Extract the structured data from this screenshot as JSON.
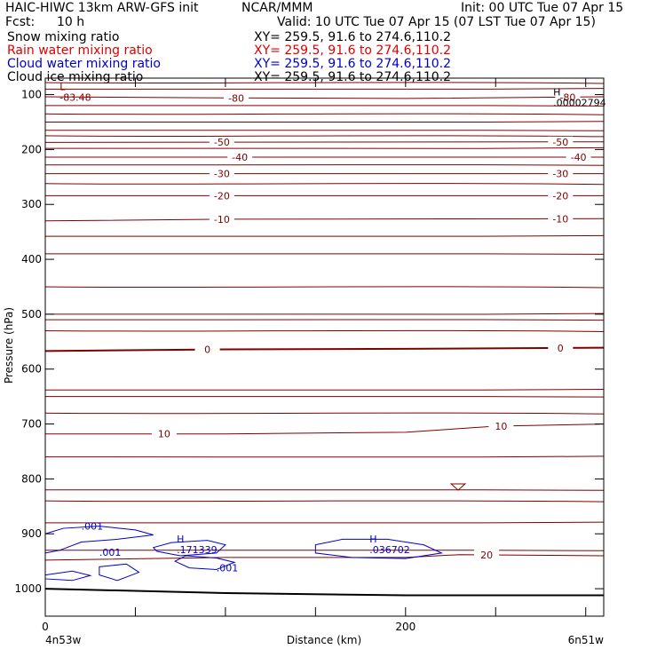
{
  "header": {
    "model": "HAIC-HIWC 13km ARW-GFS init",
    "org": "NCAR/MMM",
    "init": "Init: 00 UTC Tue 07 Apr 15",
    "fcst_label": "Fcst:",
    "fcst_value": "10 h",
    "valid": "Valid: 10 UTC Tue 07 Apr 15 (07 LST Tue 07 Apr 15)"
  },
  "legend": [
    {
      "label": "Snow mixing ratio",
      "xy": "XY= 259.5, 91.6 to 274.6,110.2",
      "color": "#000000"
    },
    {
      "label": "Rain water mixing ratio",
      "xy": "XY= 259.5, 91.6 to 274.6,110.2",
      "color": "#e00000"
    },
    {
      "label": "Cloud water mixing ratio",
      "xy": "XY= 259.5, 91.6 to 274.6,110.2",
      "color": "#0000cc"
    },
    {
      "label": "Cloud ice mixing ratio",
      "xy": "XY= 259.5, 91.6 to 274.6,110.2",
      "color": "#000000"
    }
  ],
  "chart_data": {
    "type": "line",
    "xlabel": "Distance (km)",
    "ylabel": "Pressure (hPa)",
    "xlim": [
      0,
      310
    ],
    "ylim": [
      1050,
      70
    ],
    "xticks": [
      0,
      200
    ],
    "yticks": [
      100,
      200,
      300,
      400,
      500,
      600,
      700,
      800,
      900,
      1000
    ],
    "endpoint_labels": {
      "left": "4n53w",
      "right": "6n51w"
    },
    "colors": {
      "temperature": "#800000",
      "cloud_water": "#0000cc",
      "terrain": "#000000"
    },
    "temperature_contours": [
      {
        "value": -80,
        "label": "-80",
        "points": [
          [
            0,
            104
          ],
          [
            100,
            106
          ],
          [
            200,
            107
          ],
          [
            310,
            104
          ]
        ],
        "labels_at": [
          106,
          290
        ]
      },
      {
        "value": -50,
        "label": "-50",
        "points": [
          [
            0,
            187
          ],
          [
            310,
            186
          ]
        ],
        "labels_at": [
          98,
          286
        ]
      },
      {
        "value": -40,
        "label": "-40",
        "points": [
          [
            0,
            214
          ],
          [
            310,
            214
          ]
        ],
        "labels_at": [
          108,
          296
        ]
      },
      {
        "value": -30,
        "label": "-30",
        "points": [
          [
            0,
            244
          ],
          [
            310,
            244
          ]
        ],
        "labels_at": [
          98,
          286
        ]
      },
      {
        "value": -20,
        "label": "-20",
        "points": [
          [
            0,
            284
          ],
          [
            310,
            284
          ]
        ],
        "labels_at": [
          98,
          286
        ]
      },
      {
        "value": -10,
        "label": "-10",
        "points": [
          [
            0,
            330
          ],
          [
            100,
            327
          ],
          [
            310,
            326
          ]
        ],
        "labels_at": [
          98,
          286
        ]
      },
      {
        "value": 0,
        "label": "0",
        "points": [
          [
            0,
            567
          ],
          [
            100,
            564
          ],
          [
            200,
            563
          ],
          [
            310,
            561
          ]
        ],
        "labels_at": [
          90,
          286
        ]
      },
      {
        "value": 10,
        "label": "10",
        "points": [
          [
            0,
            718
          ],
          [
            100,
            718
          ],
          [
            200,
            715
          ],
          [
            250,
            704
          ],
          [
            310,
            700
          ]
        ],
        "labels_at": [
          66,
          253
        ]
      },
      {
        "value": 20,
        "label": "20",
        "points": [
          [
            0,
            948
          ],
          [
            100,
            943
          ],
          [
            200,
            943
          ],
          [
            230,
            938
          ],
          [
            310,
            940
          ]
        ],
        "labels_at": [
          245
        ]
      }
    ],
    "unlabeled_isotherms_hpa": [
      78,
      90,
      120,
      135,
      150,
      165,
      175,
      198,
      228,
      262,
      358,
      390,
      450,
      500,
      510,
      530,
      638,
      650,
      680,
      760,
      820,
      840,
      880,
      930
    ],
    "cloud_water_labels": [
      ".001",
      "H",
      ".171339",
      ".001",
      ".001",
      "H",
      ".036702"
    ],
    "extrema_labels": [
      {
        "kind": "L",
        "value": "-83.48",
        "x": 8,
        "p": 98
      },
      {
        "kind": "H",
        "value": ".00002794",
        "x": 282,
        "p": 108
      },
      {
        "kind": "H",
        "value": ".171339",
        "x": 73,
        "p": 922
      },
      {
        "kind": "H",
        "value": ".036702",
        "x": 180,
        "p": 922
      }
    ],
    "terrain_surface_hpa": [
      [
        0,
        1000
      ],
      [
        100,
        1008
      ],
      [
        200,
        1012
      ],
      [
        310,
        1012
      ]
    ]
  }
}
